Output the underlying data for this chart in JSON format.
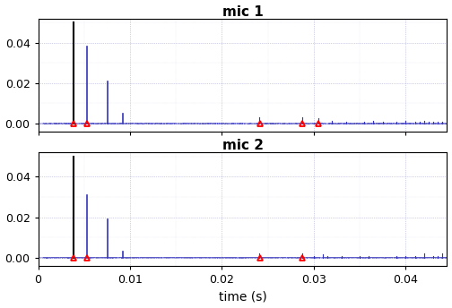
{
  "title1": "mic 1",
  "title2": "mic 2",
  "xlabel": "time (s)",
  "xlim": [
    0,
    0.0445
  ],
  "ylim": [
    -0.004,
    0.052
  ],
  "yticks": [
    0,
    0.02,
    0.04
  ],
  "xticks": [
    0,
    0.01,
    0.02,
    0.03,
    0.04
  ],
  "xticklabels": [
    "0",
    "0.01",
    "0.02",
    "0.03",
    "0.04"
  ],
  "bg_color": "white",
  "line_color": "#3333bb",
  "black_color": "#000000",
  "marker_color": "red",
  "mic1_black_spike": {
    "t": 0.00385,
    "v": 0.05
  },
  "mic1_blue_spikes": [
    {
      "t": 0.00535,
      "v": 0.038
    },
    {
      "t": 0.00755,
      "v": 0.021
    },
    {
      "t": 0.00925,
      "v": 0.005
    }
  ],
  "mic1_markers": [
    {
      "t": 0.00385,
      "v": 0.0
    },
    {
      "t": 0.00535,
      "v": 0.0
    },
    {
      "t": 0.02415,
      "v": 0.0
    },
    {
      "t": 0.02875,
      "v": 0.0
    },
    {
      "t": 0.03045,
      "v": 0.0
    }
  ],
  "mic1_small_spikes": [
    [
      0.0241,
      0.003
    ],
    [
      0.0287,
      0.003
    ],
    [
      0.0305,
      0.0025
    ],
    [
      0.032,
      0.0015
    ],
    [
      0.0335,
      0.001
    ],
    [
      0.0355,
      0.001
    ],
    [
      0.0365,
      0.0015
    ],
    [
      0.0375,
      0.001
    ],
    [
      0.039,
      0.001
    ],
    [
      0.04,
      0.0012
    ],
    [
      0.041,
      0.001
    ],
    [
      0.0415,
      0.001
    ],
    [
      0.042,
      0.0013
    ],
    [
      0.0425,
      0.001
    ],
    [
      0.043,
      0.001
    ],
    [
      0.0435,
      0.001
    ],
    [
      0.044,
      0.001
    ]
  ],
  "mic2_black_spike": {
    "t": 0.00385,
    "v": 0.05
  },
  "mic2_blue_spikes": [
    {
      "t": 0.00535,
      "v": 0.031
    },
    {
      "t": 0.00755,
      "v": 0.019
    },
    {
      "t": 0.00925,
      "v": 0.003
    }
  ],
  "mic2_markers": [
    {
      "t": 0.00385,
      "v": 0.0
    },
    {
      "t": 0.00535,
      "v": 0.0
    },
    {
      "t": 0.02415,
      "v": 0.0
    },
    {
      "t": 0.02875,
      "v": 0.0
    }
  ],
  "mic2_small_spikes": [
    [
      0.0241,
      0.002
    ],
    [
      0.0287,
      0.002
    ],
    [
      0.03,
      0.001
    ],
    [
      0.031,
      0.0015
    ],
    [
      0.0315,
      0.001
    ],
    [
      0.033,
      0.001
    ],
    [
      0.035,
      0.001
    ],
    [
      0.036,
      0.001
    ],
    [
      0.039,
      0.001
    ],
    [
      0.04,
      0.001
    ],
    [
      0.041,
      0.001
    ],
    [
      0.042,
      0.002
    ],
    [
      0.043,
      0.001
    ],
    [
      0.0435,
      0.001
    ],
    [
      0.044,
      0.002
    ]
  ]
}
